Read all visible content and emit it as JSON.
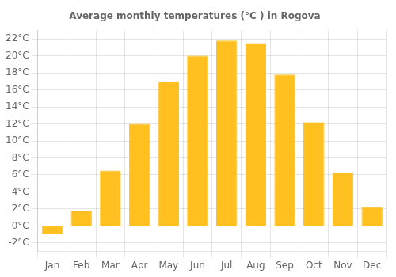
{
  "chart_data": {
    "type": "bar",
    "title": "Average monthly temperatures (°C ) in Rogova",
    "categories": [
      "Jan",
      "Feb",
      "Mar",
      "Apr",
      "May",
      "Jun",
      "Jul",
      "Aug",
      "Sep",
      "Oct",
      "Nov",
      "Dec"
    ],
    "values": [
      -1.0,
      1.8,
      6.5,
      12.0,
      17.0,
      20.0,
      21.8,
      21.5,
      17.8,
      12.2,
      6.3,
      2.2
    ],
    "color": "#FFC020",
    "ylim": [
      -3,
      23
    ],
    "yticks": [
      {
        "value": -2,
        "label": "-2°C"
      },
      {
        "value": 0,
        "label": "0°C"
      },
      {
        "value": 2,
        "label": "2°C"
      },
      {
        "value": 4,
        "label": "4°C"
      },
      {
        "value": 6,
        "label": "6°C"
      },
      {
        "value": 8,
        "label": "8°C"
      },
      {
        "value": 10,
        "label": "10°C"
      },
      {
        "value": 12,
        "label": "12°C"
      },
      {
        "value": 14,
        "label": "14°C"
      },
      {
        "value": 16,
        "label": "16°C"
      },
      {
        "value": 18,
        "label": "18°C"
      },
      {
        "value": 20,
        "label": "20°C"
      },
      {
        "value": 22,
        "label": "22°C"
      }
    ],
    "grid": true
  }
}
